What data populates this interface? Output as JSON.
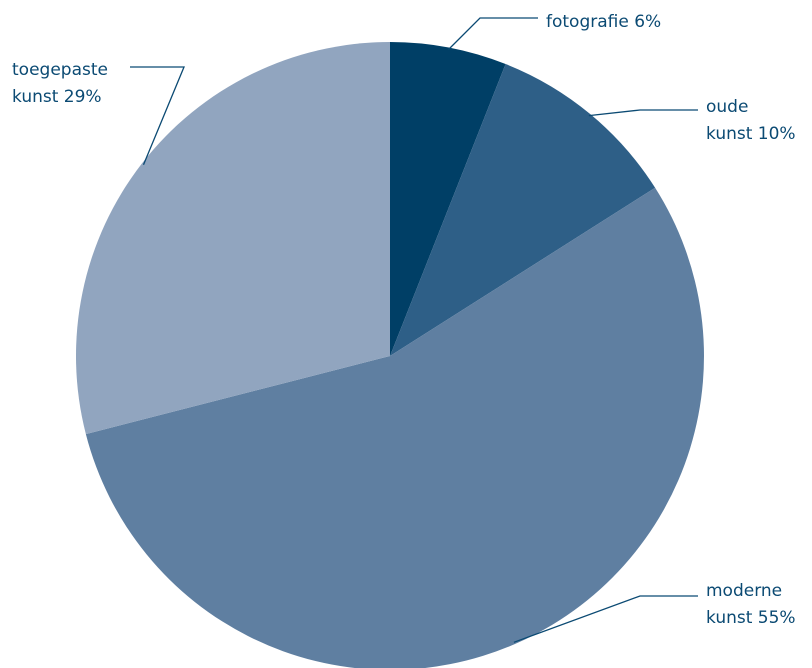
{
  "chart_data": {
    "type": "pie",
    "title": "",
    "start_angle_deg": 0,
    "direction": "clockwise",
    "label_color": "#0b4a73",
    "slices": [
      {
        "name": "fotografie",
        "value": 6,
        "line1": "fotografie 6%",
        "line2": "",
        "color": "#003f66"
      },
      {
        "name": "oude kunst",
        "value": 10,
        "line1": "oude",
        "line2": "kunst 10%",
        "color": "#2e5f87"
      },
      {
        "name": "moderne kunst",
        "value": 55,
        "line1": "moderne",
        "line2": "kunst 55%",
        "color": "#5f7fa1"
      },
      {
        "name": "toegepaste kunst",
        "value": 29,
        "line1": "toegepaste",
        "line2": "kunst 29%",
        "color": "#91a5bf"
      }
    ]
  }
}
